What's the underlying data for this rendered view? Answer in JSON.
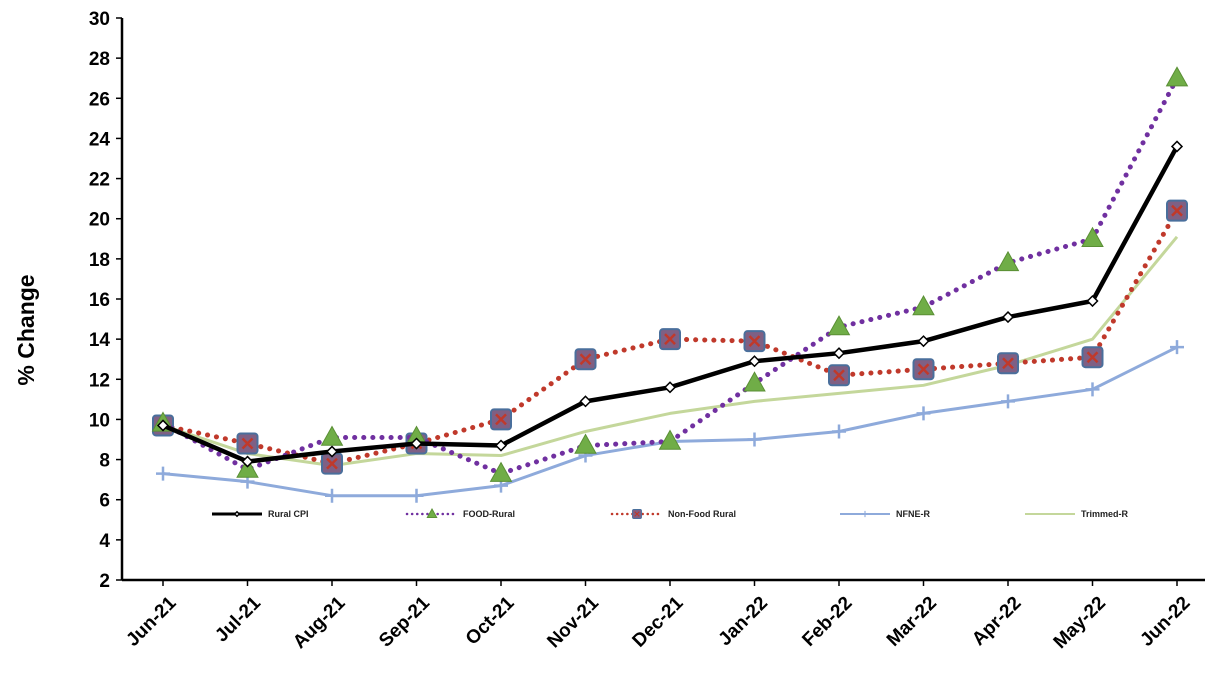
{
  "chart_data": {
    "type": "line",
    "title": "",
    "xlabel": "",
    "ylabel": "% Change",
    "ylim": [
      2,
      30
    ],
    "yticks": [
      2,
      4,
      6,
      8,
      10,
      12,
      14,
      16,
      18,
      20,
      22,
      24,
      26,
      28,
      30
    ],
    "grid": false,
    "legend_position": "bottom-inside",
    "categories": [
      "Jun-21",
      "Jul-21",
      "Aug-21",
      "Sep-21",
      "Oct-21",
      "Nov-21",
      "Dec-21",
      "Jan-22",
      "Feb-22",
      "Mar-22",
      "Apr-22",
      "May-22",
      "Jun-22"
    ],
    "series": [
      {
        "name": "Rural CPI",
        "color": "#000000",
        "style": "solid",
        "marker": "diamond",
        "values": [
          9.7,
          7.9,
          8.4,
          8.8,
          8.7,
          10.9,
          11.6,
          12.9,
          13.3,
          13.9,
          15.1,
          15.9,
          23.6
        ]
      },
      {
        "name": "FOOD-Rural",
        "color": "#7030a0",
        "marker_color": "#70ad47",
        "style": "dotted",
        "marker": "triangle",
        "values": [
          9.8,
          7.5,
          9.1,
          9.1,
          7.3,
          8.7,
          8.9,
          11.8,
          14.6,
          15.6,
          17.8,
          19.0,
          27.0
        ]
      },
      {
        "name": "Non-Food Rural",
        "color": "#c0392b",
        "marker_color": "#7f6084",
        "style": "dotted",
        "marker": "square",
        "values": [
          9.7,
          8.8,
          7.8,
          8.8,
          10.0,
          13.0,
          14.0,
          13.9,
          12.2,
          12.5,
          12.8,
          13.1,
          20.4
        ]
      },
      {
        "name": "NFNE-R",
        "color": "#8eaadb",
        "style": "solid",
        "marker": "plus",
        "values": [
          7.3,
          6.9,
          6.2,
          6.2,
          6.7,
          8.2,
          8.9,
          9.0,
          9.4,
          10.3,
          10.9,
          11.5,
          13.6
        ]
      },
      {
        "name": "Trimmed-R",
        "color": "#c4d79b",
        "style": "solid",
        "marker": "none",
        "values": [
          9.7,
          8.3,
          7.7,
          8.3,
          8.2,
          9.4,
          10.3,
          10.9,
          11.3,
          11.7,
          12.7,
          14.0,
          19.1
        ]
      }
    ]
  }
}
